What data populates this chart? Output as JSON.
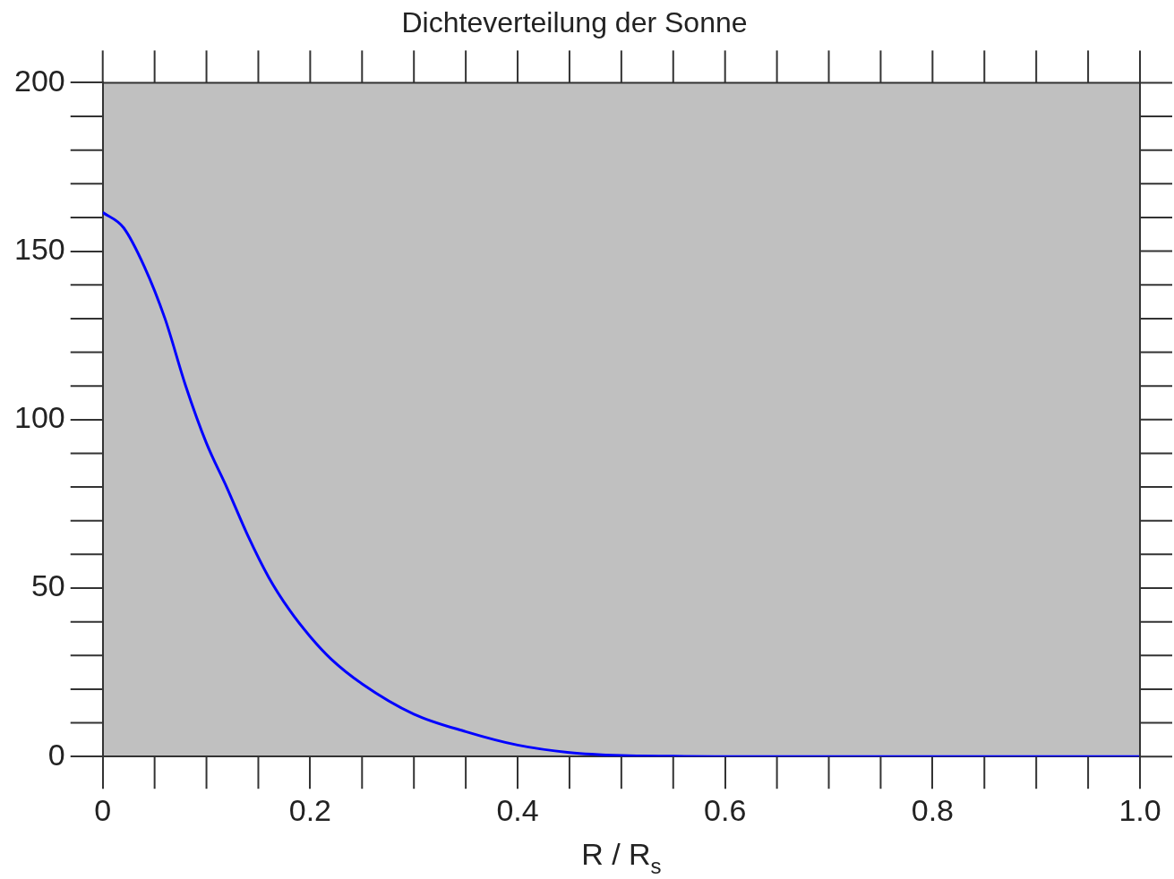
{
  "chart_data": {
    "type": "line",
    "title": "Dichteverteilung der Sonne",
    "xlabel": "R / R$_{s}$",
    "series": [
      {
        "color": "#0000ff",
        "x": [
          0,
          0.02,
          0.04,
          0.06,
          0.08,
          0.1,
          0.12,
          0.14,
          0.16,
          0.18,
          0.2,
          0.22,
          0.25,
          0.3,
          0.35,
          0.4,
          0.45,
          0.5,
          0.55,
          0.6,
          0.8,
          1.0
        ],
        "values": [
          161.5,
          157,
          145.5,
          130,
          110,
          93,
          79.6,
          65.5,
          53.2,
          43.5,
          35.6,
          29,
          21.6,
          12.6,
          7.4,
          3.4,
          1.2,
          0.3,
          0.1,
          0,
          0,
          0
        ]
      }
    ],
    "xlim": [
      0,
      1
    ],
    "xticks": [
      0,
      0.2,
      0.4,
      0.6,
      0.8,
      {
        "value": 1,
        "label": "1.0"
      }
    ],
    "ylim": [
      0,
      200
    ],
    "yticks": [
      0,
      50,
      100,
      150,
      200
    ],
    "marker": "none",
    "line_style": "solid"
  }
}
